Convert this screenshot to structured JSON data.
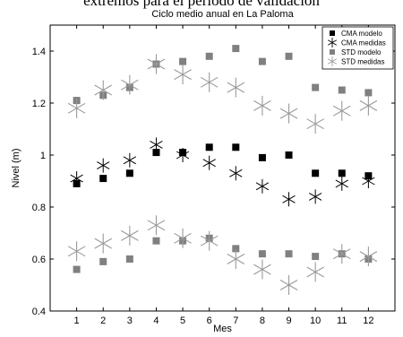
{
  "caption": "extremos para el período de validación",
  "chart_data": {
    "type": "scatter",
    "title": "Ciclo medio anual en La Paloma",
    "xlabel": "Mes",
    "ylabel": "Nivel (m)",
    "xlim": [
      0,
      13
    ],
    "ylim": [
      0.4,
      1.5
    ],
    "xticks": [
      1,
      2,
      3,
      4,
      5,
      6,
      7,
      8,
      9,
      10,
      11,
      12
    ],
    "yticks": [
      0.4,
      0.6,
      0.8,
      1,
      1.2,
      1.4
    ],
    "ytick_labels": [
      "0.4",
      "0.6",
      "0.8",
      "1",
      "1.2",
      "1.4"
    ],
    "legend_position": "top-right",
    "grid": false,
    "x": [
      1,
      2,
      3,
      4,
      5,
      6,
      7,
      8,
      9,
      10,
      11,
      12
    ],
    "series": [
      {
        "name": "CMA modelo",
        "marker": "square",
        "color": "#000000",
        "values": [
          0.89,
          0.91,
          0.93,
          1.01,
          1.01,
          1.03,
          1.03,
          0.99,
          1.0,
          0.93,
          0.93,
          0.92
        ]
      },
      {
        "name": "CMA medidas",
        "marker": "asterisk",
        "color": "#000000",
        "values": [
          0.91,
          0.96,
          0.98,
          1.04,
          1.0,
          0.97,
          0.93,
          0.88,
          0.83,
          0.84,
          0.89,
          0.9
        ]
      },
      {
        "name": "STD modelo",
        "marker": "square",
        "color": "#808080",
        "values": [
          1.21,
          1.23,
          1.26,
          1.35,
          1.36,
          1.38,
          1.41,
          1.36,
          1.38,
          1.26,
          1.25,
          1.24
        ]
      },
      {
        "name": "STD medidas",
        "marker": "asterisk",
        "color": "#9a9a9a",
        "values": [
          1.18,
          1.25,
          1.27,
          1.35,
          1.31,
          1.28,
          1.26,
          1.19,
          1.16,
          1.12,
          1.17,
          1.19
        ]
      },
      {
        "name": "STD modelo",
        "marker": "square",
        "color": "#808080",
        "legend": false,
        "values": [
          0.56,
          0.59,
          0.6,
          0.67,
          0.67,
          0.68,
          0.64,
          0.62,
          0.62,
          0.61,
          0.62,
          0.6
        ]
      },
      {
        "name": "STD medidas",
        "marker": "asterisk",
        "color": "#9a9a9a",
        "legend": false,
        "values": [
          0.63,
          0.66,
          0.69,
          0.73,
          0.68,
          0.67,
          0.6,
          0.56,
          0.5,
          0.55,
          0.62,
          0.61
        ]
      }
    ]
  }
}
